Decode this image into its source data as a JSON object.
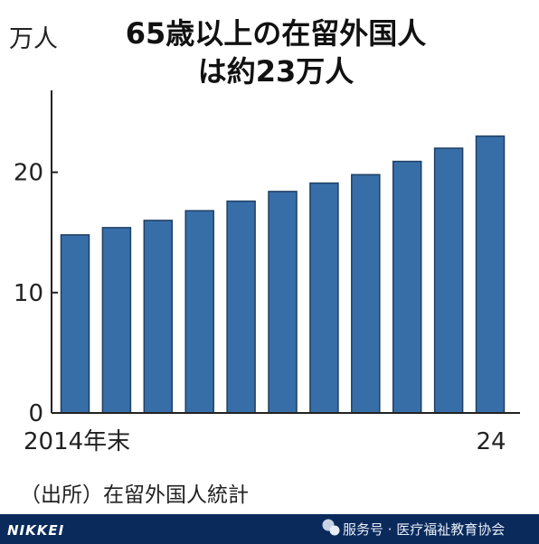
{
  "chart_data": {
    "type": "bar",
    "title_lines": [
      "65歳以上の在留外国人",
      "は約23万人"
    ],
    "ylabel": "万人",
    "categories": [
      "2014年末",
      "",
      "",
      "",
      "",
      "",
      "",
      "",
      "",
      "",
      "24"
    ],
    "values": [
      14.8,
      15.4,
      16.0,
      16.8,
      17.6,
      18.4,
      19.1,
      19.8,
      20.9,
      22.0,
      23.0
    ],
    "ylim": [
      0,
      25
    ],
    "yticks": [
      0,
      10,
      20
    ],
    "grid": false,
    "source": "（出所）在留外国人統計",
    "colors": {
      "bar": "#386ea8",
      "bar_edge": "#1f3f63",
      "axis": "#222222"
    }
  },
  "footer": {
    "logo": "NIKKEI",
    "watermark": "服务号 · 医疗福祉教育协会"
  }
}
